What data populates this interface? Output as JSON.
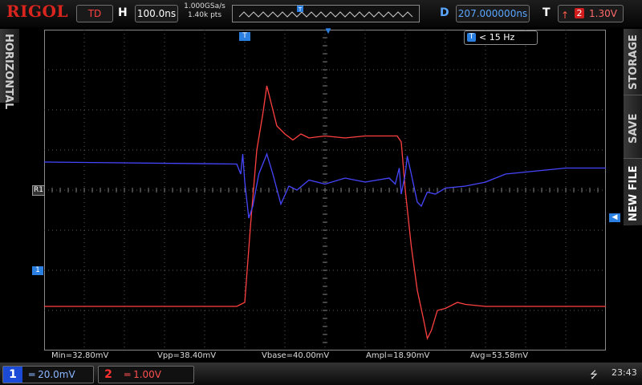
{
  "header": {
    "brand": "RIGOL",
    "trigger_status": "TD",
    "horizontal_label": "H",
    "timebase": "100.0ns",
    "sample_rate": "1.000GSa/s",
    "memory_depth": "1.40k pts",
    "delay_label": "D",
    "delay_value": "207.000000ns",
    "trigger_label": "T",
    "trigger_source": "2",
    "trigger_level": "1.30V"
  },
  "side_menus": {
    "left": "HORIZONTAL",
    "right": [
      "STORAGE",
      "SAVE",
      "NEW FILE"
    ]
  },
  "freq_counter": {
    "icon": "T",
    "value": "< 15 Hz"
  },
  "markers": {
    "ref": "R1",
    "ch1": "1",
    "trigger": "T"
  },
  "measurements": [
    "Min=32.80mV",
    "Vpp=38.40mV",
    "Vbase=40.00mV",
    "Ampl=18.90mV",
    "Avg=53.58mV"
  ],
  "channels": {
    "ch1": {
      "number": "1",
      "scale": "20.0mV",
      "color": "#3c3cff"
    },
    "ch2": {
      "number": "2",
      "scale": "1.00V",
      "color": "#ff2a2a"
    }
  },
  "status": {
    "clock": "23:43",
    "usb_icon": "usb-icon"
  },
  "chart_data": {
    "type": "line",
    "xlabel": "",
    "ylabel": "",
    "x_divisions": 14,
    "y_divisions": 8,
    "xlim": [
      0,
      14
    ],
    "ylim": [
      -4,
      4
    ],
    "grid": true,
    "series": [
      {
        "name": "2",
        "color": "#ff4040",
        "points": [
          [
            0,
            -2.9
          ],
          [
            4.8,
            -2.9
          ],
          [
            5.0,
            -2.8
          ],
          [
            5.15,
            -0.8
          ],
          [
            5.3,
            1.0
          ],
          [
            5.45,
            1.9
          ],
          [
            5.55,
            2.6
          ],
          [
            5.65,
            2.2
          ],
          [
            5.8,
            1.6
          ],
          [
            6.0,
            1.4
          ],
          [
            6.2,
            1.25
          ],
          [
            6.4,
            1.4
          ],
          [
            6.6,
            1.3
          ],
          [
            7.0,
            1.35
          ],
          [
            7.5,
            1.3
          ],
          [
            8.0,
            1.35
          ],
          [
            8.8,
            1.35
          ],
          [
            8.9,
            1.2
          ],
          [
            9.0,
            0.0
          ],
          [
            9.15,
            -1.4
          ],
          [
            9.3,
            -2.5
          ],
          [
            9.45,
            -3.2
          ],
          [
            9.55,
            -3.7
          ],
          [
            9.65,
            -3.5
          ],
          [
            9.8,
            -3.0
          ],
          [
            10.0,
            -2.95
          ],
          [
            10.3,
            -2.8
          ],
          [
            10.5,
            -2.85
          ],
          [
            11.0,
            -2.9
          ],
          [
            14,
            -2.9
          ]
        ]
      },
      {
        "name": "1",
        "color": "#4646ff",
        "points": [
          [
            0,
            0.7
          ],
          [
            4.8,
            0.65
          ],
          [
            4.9,
            0.4
          ],
          [
            4.95,
            0.9
          ],
          [
            5.0,
            0.2
          ],
          [
            5.1,
            -0.7
          ],
          [
            5.2,
            -0.4
          ],
          [
            5.35,
            0.4
          ],
          [
            5.55,
            0.9
          ],
          [
            5.7,
            0.4
          ],
          [
            5.9,
            -0.35
          ],
          [
            6.1,
            0.1
          ],
          [
            6.3,
            0.0
          ],
          [
            6.6,
            0.25
          ],
          [
            7.0,
            0.15
          ],
          [
            7.5,
            0.3
          ],
          [
            8.0,
            0.2
          ],
          [
            8.6,
            0.3
          ],
          [
            8.75,
            0.15
          ],
          [
            8.85,
            0.55
          ],
          [
            8.9,
            -0.1
          ],
          [
            9.0,
            0.4
          ],
          [
            9.05,
            0.85
          ],
          [
            9.15,
            0.4
          ],
          [
            9.3,
            -0.3
          ],
          [
            9.4,
            -0.4
          ],
          [
            9.55,
            -0.05
          ],
          [
            9.75,
            -0.1
          ],
          [
            10.0,
            0.05
          ],
          [
            10.5,
            0.1
          ],
          [
            11.0,
            0.2
          ],
          [
            11.5,
            0.4
          ],
          [
            12.0,
            0.45
          ],
          [
            12.5,
            0.5
          ],
          [
            13.0,
            0.55
          ],
          [
            14,
            0.55
          ]
        ]
      }
    ]
  }
}
